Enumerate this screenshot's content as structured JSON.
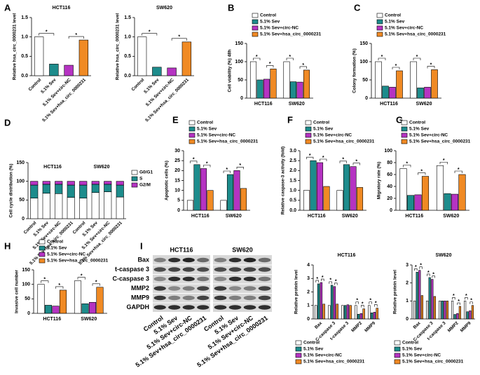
{
  "chart_data": [
    {
      "panel": "A",
      "type": "bar",
      "title": "HCT116",
      "ylabel": "Relative hsa_circ_0000231 level",
      "categories": [
        "Control",
        "5.1% Sev",
        "5.1% Sev+circ-NC",
        "5.1% Sev+hsa_circ_0000231"
      ],
      "values": [
        1.0,
        0.3,
        0.27,
        0.92
      ],
      "colors": [
        "#ffffff",
        "#1d8c8c",
        "#b533c2",
        "#f08a24"
      ],
      "ylim": [
        0,
        1.5
      ],
      "yticks": [
        {
          "value": 0,
          "label": "0.0"
        },
        0.5,
        {
          "value": 1,
          "label": "1.0"
        },
        1.5
      ],
      "significance": [
        {
          "bars": [
            0,
            1
          ],
          "label": "*"
        },
        {
          "bars": [
            2,
            3
          ],
          "label": "*"
        }
      ]
    },
    {
      "type": "bar",
      "title": "SW620",
      "ylabel": "Relative hsa_circ_0000231 level",
      "categories": [
        "Control",
        "5.1% Sev",
        "5.1% Sev+circ-NC",
        "5.1% Sev+hsa_circ_0000231"
      ],
      "values": [
        1.0,
        0.22,
        0.2,
        0.87
      ],
      "colors": [
        "#ffffff",
        "#1d8c8c",
        "#b533c2",
        "#f08a24"
      ],
      "ylim": [
        0,
        1.5
      ],
      "yticks": [
        {
          "value": 0,
          "label": "0.0"
        },
        0.5,
        {
          "value": 1,
          "label": "1.0"
        },
        1.5
      ],
      "significance": [
        {
          "bars": [
            0,
            1
          ],
          "label": "*"
        },
        {
          "bars": [
            2,
            3
          ],
          "label": "*"
        }
      ]
    },
    {
      "panel": "B",
      "type": "bar",
      "ylabel": "Cell viability (%) 48h",
      "categories": [
        "HCT116",
        "SW620"
      ],
      "legend": "top",
      "series": [
        {
          "name": "Control",
          "color": "#ffffff",
          "values": [
            100,
            100
          ]
        },
        {
          "name": "5.1% Sev",
          "color": "#1d8c8c",
          "values": [
            50,
            45
          ]
        },
        {
          "name": "5.1% Sev+circ-NC",
          "color": "#b533c2",
          "values": [
            52,
            44
          ]
        },
        {
          "name": "5.1% Sev+hsa_circ_0000231",
          "color": "#f08a24",
          "values": [
            80,
            77
          ]
        }
      ],
      "ylim": [
        0,
        150
      ],
      "yticks": [
        0,
        50,
        100,
        150
      ],
      "significance": [
        {
          "group": 0,
          "bars": [
            0,
            1
          ],
          "label": "*"
        },
        {
          "group": 0,
          "bars": [
            2,
            3
          ],
          "label": "*"
        },
        {
          "group": 1,
          "bars": [
            0,
            1
          ],
          "label": "*"
        },
        {
          "group": 1,
          "bars": [
            2,
            3
          ],
          "label": "*"
        }
      ]
    },
    {
      "panel": "C",
      "type": "bar",
      "ylabel": "Colony formation (%)",
      "categories": [
        "HCT116",
        "SW620"
      ],
      "legend": "top",
      "series": [
        {
          "name": "Control",
          "color": "#ffffff",
          "values": [
            100,
            100
          ]
        },
        {
          "name": "5.1% Sev",
          "color": "#1d8c8c",
          "values": [
            33,
            28
          ]
        },
        {
          "name": "5.1% Sev+circ-NC",
          "color": "#b533c2",
          "values": [
            30,
            30
          ]
        },
        {
          "name": "5.1% Sev+hsa_circ_0000231",
          "color": "#f08a24",
          "values": [
            75,
            78
          ]
        }
      ],
      "ylim": [
        0,
        150
      ],
      "yticks": [
        0,
        50,
        100,
        150
      ],
      "significance": [
        {
          "group": 0,
          "bars": [
            0,
            1
          ],
          "label": "*"
        },
        {
          "group": 0,
          "bars": [
            2,
            3
          ],
          "label": "*"
        },
        {
          "group": 1,
          "bars": [
            0,
            1
          ],
          "label": "*"
        },
        {
          "group": 1,
          "bars": [
            2,
            3
          ],
          "label": "*"
        }
      ]
    },
    {
      "panel": "D",
      "type": "stacked_bar",
      "ylabel": "Cell cycle distribution (%)",
      "groups": [
        "HCT116",
        "SW620"
      ],
      "legend": "right",
      "categories": [
        "Control",
        "5.1% Sev",
        "5.1% Sev+circ-NC",
        "5.1% Sev+hsa_circ_0000231",
        "Control",
        "5.1% Sev",
        "5.1% Sev+circ-NC",
        "5.1% Sev+hsa_circ_0000231"
      ],
      "series": [
        {
          "name": "G0/G1",
          "color": "#ffffff",
          "values": [
            55,
            68,
            67,
            57,
            55,
            70,
            72,
            58
          ]
        },
        {
          "name": "S",
          "color": "#1d8c8c",
          "values": [
            35,
            24,
            25,
            33,
            35,
            22,
            20,
            32
          ]
        },
        {
          "name": "G2/M",
          "color": "#b533c2",
          "values": [
            10,
            8,
            8,
            10,
            10,
            8,
            8,
            10
          ]
        }
      ],
      "ylim": [
        0,
        150
      ],
      "yticks": [
        0,
        50,
        100,
        150
      ]
    },
    {
      "panel": "E",
      "type": "bar",
      "ylabel": "Apoptotic cells (%)",
      "categories": [
        "HCT116",
        "SW620"
      ],
      "legend": "top",
      "series": [
        {
          "name": "Control",
          "color": "#ffffff",
          "values": [
            5,
            5
          ]
        },
        {
          "name": "5.1% Sev",
          "color": "#1d8c8c",
          "values": [
            23,
            18
          ]
        },
        {
          "name": "5.1% Sev+circ-NC",
          "color": "#b533c2",
          "values": [
            21,
            20
          ]
        },
        {
          "name": "5.1% Sev+hsa_circ_0000231",
          "color": "#f08a24",
          "values": [
            10,
            11
          ]
        }
      ],
      "ylim": [
        0,
        30
      ],
      "yticks": [
        0,
        5,
        10,
        15,
        20,
        25,
        30
      ],
      "significance": [
        {
          "group": 0,
          "bars": [
            0,
            1
          ],
          "label": "*"
        },
        {
          "group": 0,
          "bars": [
            2,
            3
          ],
          "label": "*"
        },
        {
          "group": 1,
          "bars": [
            0,
            1
          ],
          "label": "*"
        },
        {
          "group": 1,
          "bars": [
            2,
            3
          ],
          "label": "*"
        }
      ]
    },
    {
      "panel": "F",
      "type": "bar",
      "ylabel": "Relative caspase-3 activity (fold)",
      "categories": [
        "HCT116",
        "SW620"
      ],
      "legend": "top",
      "series": [
        {
          "name": "Control",
          "color": "#ffffff",
          "values": [
            1.0,
            1.0
          ]
        },
        {
          "name": "5.1% Sev",
          "color": "#1d8c8c",
          "values": [
            2.5,
            2.3
          ]
        },
        {
          "name": "5.1% Sev+circ-NC",
          "color": "#b533c2",
          "values": [
            2.4,
            2.2
          ]
        },
        {
          "name": "5.1% Sev+hsa_circ_0000231",
          "color": "#f08a24",
          "values": [
            1.2,
            1.15
          ]
        }
      ],
      "ylim": [
        0,
        3
      ],
      "yticks": [
        {
          "value": 0,
          "label": "0.0"
        },
        0.5,
        {
          "value": 1,
          "label": "1.0"
        },
        1.5,
        {
          "value": 2,
          "label": "2.0"
        },
        2.5,
        {
          "value": 3,
          "label": "3.0"
        }
      ],
      "significance": [
        {
          "group": 0,
          "bars": [
            0,
            1
          ],
          "label": "*"
        },
        {
          "group": 0,
          "bars": [
            2,
            3
          ],
          "label": "*"
        },
        {
          "group": 1,
          "bars": [
            0,
            1
          ],
          "label": "*"
        },
        {
          "group": 1,
          "bars": [
            2,
            3
          ],
          "label": "*"
        }
      ]
    },
    {
      "panel": "G",
      "type": "bar",
      "ylabel": "Migratory rate (%)",
      "categories": [
        "HCT116",
        "SW620"
      ],
      "legend": "top",
      "series": [
        {
          "name": "Control",
          "color": "#ffffff",
          "values": [
            70,
            75
          ]
        },
        {
          "name": "5.1% Sev",
          "color": "#1d8c8c",
          "values": [
            25,
            28
          ]
        },
        {
          "name": "5.1% Sev+circ-NC",
          "color": "#b533c2",
          "values": [
            26,
            27
          ]
        },
        {
          "name": "5.1% Sev+hsa_circ_0000231",
          "color": "#f08a24",
          "values": [
            57,
            60
          ]
        }
      ],
      "ylim": [
        0,
        100
      ],
      "yticks": [
        0,
        20,
        40,
        60,
        80,
        100
      ],
      "significance": [
        {
          "group": 0,
          "bars": [
            0,
            1
          ],
          "label": "*"
        },
        {
          "group": 0,
          "bars": [
            2,
            3
          ],
          "label": "*"
        },
        {
          "group": 1,
          "bars": [
            0,
            1
          ],
          "label": "*"
        },
        {
          "group": 1,
          "bars": [
            2,
            3
          ],
          "label": "*"
        }
      ]
    },
    {
      "panel": "H",
      "type": "bar",
      "ylabel": "Invasive cell number",
      "categories": [
        "HCT116",
        "SW620"
      ],
      "legend": "top",
      "series": [
        {
          "name": "Control",
          "color": "#ffffff",
          "values": [
            100,
            112
          ]
        },
        {
          "name": "5.1% Sev",
          "color": "#1d8c8c",
          "values": [
            28,
            33
          ]
        },
        {
          "name": "5.1% Sev+circ-NC",
          "color": "#b533c2",
          "values": [
            25,
            38
          ]
        },
        {
          "name": "5.1% Sev+hsa_circ_0000231",
          "color": "#f08a24",
          "values": [
            80,
            90
          ]
        }
      ],
      "ylim": [
        0,
        150
      ],
      "yticks": [
        0,
        50,
        100,
        150
      ],
      "significance": [
        {
          "group": 0,
          "bars": [
            0,
            1
          ],
          "label": "*"
        },
        {
          "group": 0,
          "bars": [
            2,
            3
          ],
          "label": "*"
        },
        {
          "group": 1,
          "bars": [
            0,
            1
          ],
          "label": "*"
        },
        {
          "group": 1,
          "bars": [
            2,
            3
          ],
          "label": "*"
        }
      ]
    },
    {
      "type": "bar",
      "title": "HCT116",
      "ylabel": "Relative protein level",
      "rotate_labels": true,
      "legend": "bottom",
      "categories": [
        "Bax",
        "C-caspase 3",
        "t-caspase 3",
        "MMP2",
        "MMP9"
      ],
      "series": [
        {
          "name": "Control",
          "color": "#ffffff",
          "values": [
            1,
            1,
            1,
            1,
            1
          ]
        },
        {
          "name": "5.1% Sev",
          "color": "#1d8c8c",
          "values": [
            2.6,
            2.5,
            1.0,
            0.35,
            0.45
          ]
        },
        {
          "name": "5.1% Sev+circ-NC",
          "color": "#b533c2",
          "values": [
            2.7,
            2.4,
            1.05,
            0.4,
            0.5
          ]
        },
        {
          "name": "5.1% Sev+hsa_circ_0000231",
          "color": "#f08a24",
          "values": [
            1.1,
            1.1,
            1.0,
            0.75,
            0.8
          ]
        }
      ],
      "ylim": [
        0,
        4
      ],
      "yticks": [
        0,
        1,
        2,
        3,
        4
      ],
      "significance": [
        {
          "group": 0,
          "bars": [
            0,
            1
          ],
          "label": "*"
        },
        {
          "group": 0,
          "bars": [
            2,
            3
          ],
          "label": "*"
        },
        {
          "group": 1,
          "bars": [
            0,
            1
          ],
          "label": "*"
        },
        {
          "group": 1,
          "bars": [
            2,
            3
          ],
          "label": "*"
        },
        {
          "group": 3,
          "bars": [
            0,
            1
          ],
          "label": "*"
        },
        {
          "group": 3,
          "bars": [
            2,
            3
          ],
          "label": "*"
        },
        {
          "group": 4,
          "bars": [
            0,
            1
          ],
          "label": "*"
        },
        {
          "group": 4,
          "bars": [
            2,
            3
          ],
          "label": "*"
        }
      ]
    },
    {
      "type": "bar",
      "title": "SW620",
      "ylabel": "Relative protein level",
      "rotate_labels": true,
      "legend": "bottom",
      "categories": [
        "Bax",
        "C-caspase 3",
        "t-caspase 3",
        "MMP2",
        "MMP9"
      ],
      "series": [
        {
          "name": "Control",
          "color": "#ffffff",
          "values": [
            1,
            1,
            1,
            1,
            1
          ]
        },
        {
          "name": "5.1% Sev",
          "color": "#1d8c8c",
          "values": [
            2.6,
            2.3,
            1.0,
            0.25,
            0.4
          ]
        },
        {
          "name": "5.1% Sev+circ-NC",
          "color": "#b533c2",
          "values": [
            2.7,
            2.2,
            1.0,
            0.3,
            0.45
          ]
        },
        {
          "name": "5.1% Sev+hsa_circ_0000231",
          "color": "#f08a24",
          "values": [
            1.3,
            1.25,
            1.0,
            0.7,
            0.75
          ]
        }
      ],
      "ylim": [
        0,
        3
      ],
      "yticks": [
        0,
        1,
        2,
        3
      ],
      "significance": [
        {
          "group": 0,
          "bars": [
            0,
            1
          ],
          "label": "*"
        },
        {
          "group": 0,
          "bars": [
            2,
            3
          ],
          "label": "*"
        },
        {
          "group": 1,
          "bars": [
            0,
            1
          ],
          "label": "*"
        },
        {
          "group": 1,
          "bars": [
            2,
            3
          ],
          "label": "*"
        },
        {
          "group": 3,
          "bars": [
            0,
            1
          ],
          "label": "*"
        },
        {
          "group": 3,
          "bars": [
            2,
            3
          ],
          "label": "*"
        },
        {
          "group": 4,
          "bars": [
            0,
            1
          ],
          "label": "*"
        },
        {
          "group": 4,
          "bars": [
            2,
            3
          ],
          "label": "*"
        }
      ]
    }
  ],
  "blot": {
    "panel": "I",
    "groups": [
      "HCT116",
      "SW620"
    ],
    "rows": [
      "Bax",
      "t-caspase 3",
      "C-caspase 3",
      "MMP2",
      "MMP9",
      "GAPDH"
    ],
    "lanes": [
      "Control",
      "5.1% Sev",
      "5.1% Sev+circ-NC",
      "5.1% Sev+hsa_circ_0000231"
    ]
  }
}
